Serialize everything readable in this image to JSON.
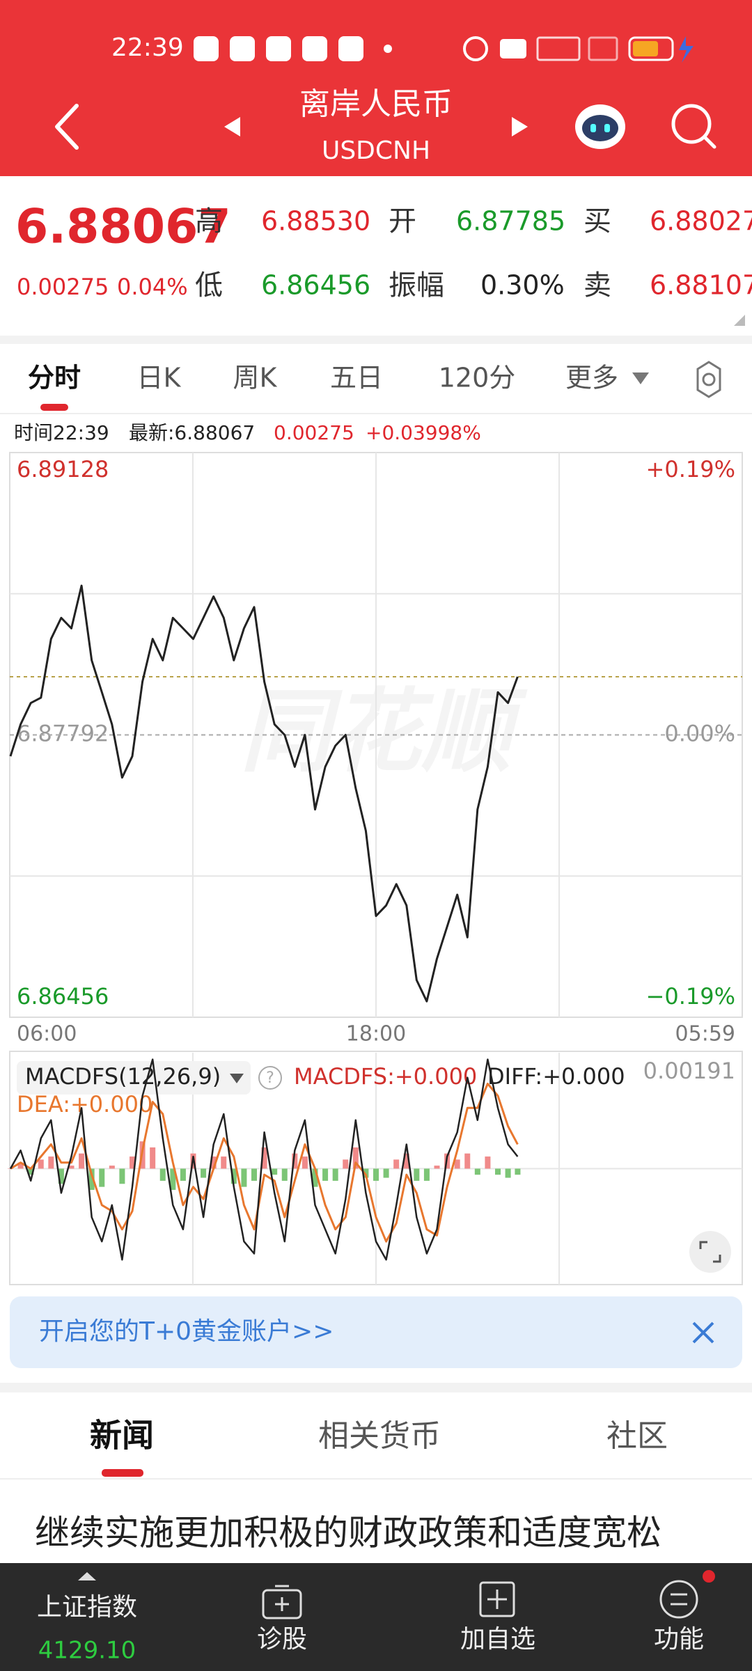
{
  "status_bar": {
    "time": "22:39"
  },
  "header": {
    "title": "离岸人民币",
    "code": "USDCNH"
  },
  "quote": {
    "price": "6.88067",
    "change": "0.00275",
    "change_pct": "0.04%",
    "fields": [
      {
        "label": "高",
        "value": "6.88530"
      },
      {
        "label": "开",
        "value": "6.87785"
      },
      {
        "label": "买",
        "value": "6.88027"
      },
      {
        "label": "低",
        "value": "6.86456"
      },
      {
        "label": "振幅",
        "value": "0.30%"
      },
      {
        "label": "卖",
        "value": "6.88107"
      }
    ]
  },
  "tabs": [
    "分时",
    "日K",
    "周K",
    "五日",
    "120分",
    "更多"
  ],
  "info": {
    "time": "时间22:39",
    "latest": "最新:6.88067",
    "change": "0.00275",
    "change_pct": "+0.03998%"
  },
  "watermark": "同花顺",
  "chart_data": [
    {
      "type": "line",
      "color": "#222222",
      "x": [
        "06:00",
        "06:20",
        "06:40",
        "07:00",
        "07:20",
        "07:40",
        "08:00",
        "08:20",
        "08:40",
        "09:00",
        "09:20",
        "09:40",
        "10:00",
        "10:20",
        "10:40",
        "11:00",
        "11:20",
        "11:40",
        "12:00",
        "12:20",
        "12:40",
        "13:00",
        "13:20",
        "13:40",
        "14:00",
        "14:20",
        "14:40",
        "15:00",
        "15:20",
        "15:40",
        "16:00",
        "16:20",
        "16:40",
        "17:00",
        "17:20",
        "17:40",
        "18:00",
        "18:20",
        "18:40",
        "19:00",
        "19:20",
        "19:40",
        "20:00",
        "20:20",
        "20:40",
        "21:00",
        "21:20",
        "21:40",
        "22:00",
        "22:20",
        "22:39"
      ],
      "values": [
        6.87691,
        6.87842,
        6.87943,
        6.87968,
        6.88246,
        6.88346,
        6.88296,
        6.88498,
        6.88145,
        6.87994,
        6.87842,
        6.8759,
        6.87691,
        6.88044,
        6.88246,
        6.88145,
        6.88346,
        6.88296,
        6.88246,
        6.88346,
        6.88447,
        6.88346,
        6.88145,
        6.88296,
        6.88397,
        6.88044,
        6.87842,
        6.87792,
        6.87641,
        6.87792,
        6.87439,
        6.87641,
        6.87741,
        6.87792,
        6.8754,
        6.87338,
        6.86935,
        6.86985,
        6.87086,
        6.86985,
        6.86632,
        6.86531,
        6.86733,
        6.86884,
        6.87036,
        6.86834,
        6.87439,
        6.87641,
        6.87994,
        6.87943,
        6.88067
      ],
      "ylim": [
        6.86456,
        6.89128
      ],
      "yticks": [
        6.86456,
        6.87792,
        6.89128
      ],
      "y2lim": [
        -0.19,
        0.19
      ],
      "y2ticks": [
        {
          "value": -0.19,
          "label": "−0.19%"
        },
        {
          "value": 0,
          "label": "0.00%"
        },
        {
          "value": 0.19,
          "label": "+0.19%"
        }
      ],
      "xlim": [
        "06:00",
        "05:59"
      ],
      "xticks": [
        "06:00",
        "18:00",
        "05:59"
      ],
      "grid": true
    },
    {
      "type": "macd",
      "title": "MACDFS(12,26,9)",
      "x": [
        "06:00",
        "06:20",
        "06:40",
        "07:00",
        "07:20",
        "07:40",
        "08:00",
        "08:20",
        "08:40",
        "09:00",
        "09:20",
        "09:40",
        "10:00",
        "10:20",
        "10:40",
        "11:00",
        "11:20",
        "11:40",
        "12:00",
        "12:20",
        "12:40",
        "13:00",
        "13:20",
        "13:40",
        "14:00",
        "14:20",
        "14:40",
        "15:00",
        "15:20",
        "15:40",
        "16:00",
        "16:20",
        "16:40",
        "17:00",
        "17:20",
        "17:40",
        "18:00",
        "18:20",
        "18:40",
        "19:00",
        "19:20",
        "19:40",
        "20:00",
        "20:20",
        "20:40",
        "21:00",
        "21:20",
        "21:40",
        "22:00",
        "22:20",
        "22:39"
      ],
      "xlim": [
        "06:00",
        "05:59"
      ],
      "ylim": [
        -0.00191,
        0.00191
      ],
      "yticks": [
        0.00191
      ],
      "series": [
        {
          "name": "MACDFS:+0.000",
          "color": "#f08a8a",
          "negative_color": "#7cc576",
          "values": [
            0,
            0.0001,
            -0.0001,
            0.00015,
            0.0002,
            -0.00025,
            5e-05,
            0.00025,
            -0.00035,
            -0.0003,
            5e-05,
            -0.00025,
            0.0002,
            0.00045,
            0.00035,
            -0.0002,
            -0.00035,
            -0.0002,
            0.00025,
            -0.00015,
            0.0002,
            0.0002,
            -0.00025,
            -0.0003,
            -0.0002,
            0.00035,
            -0.0001,
            -0.0002,
            0.00025,
            0.0002,
            -0.0003,
            -0.0002,
            -0.0002,
            0.00015,
            0.00035,
            -0.00015,
            -0.0002,
            -0.00015,
            0.00015,
            0.00025,
            -0.0002,
            -0.0002,
            5e-05,
            0.00025,
            0.00015,
            0.00025,
            -0.0001,
            0.0002,
            -0.0001,
            -0.00015,
            -0.0001
          ]
        },
        {
          "name": "DIFF:+0.000",
          "color": "#222222",
          "values": [
            0,
            0.0003,
            -0.0002,
            0.0005,
            0.0008,
            -0.0004,
            0.0002,
            0.001,
            -0.0008,
            -0.0012,
            -0.0006,
            -0.0015,
            -0.0003,
            0.0012,
            0.0018,
            0.0005,
            -0.0006,
            -0.001,
            0.0002,
            -0.0008,
            0.0004,
            0.0009,
            -0.0003,
            -0.0012,
            -0.0014,
            0.0006,
            -0.0004,
            -0.0012,
            0.0003,
            0.0008,
            -0.0006,
            -0.001,
            -0.0014,
            -0.0005,
            0.0008,
            -0.0004,
            -0.0012,
            -0.0015,
            -0.0006,
            0.0004,
            -0.0008,
            -0.0014,
            -0.001,
            0.0002,
            0.0006,
            0.0015,
            0.0008,
            0.0018,
            0.001,
            0.0004,
            0.0002
          ]
        },
        {
          "name": "DEA:+0.000",
          "color": "#e8772e",
          "values": [
            0,
            0.0001,
            0,
            0.0002,
            0.0004,
            0.0001,
            0.0001,
            0.0005,
            -0.0001,
            -0.0006,
            -0.0007,
            -0.001,
            -0.0007,
            0.0003,
            0.0011,
            0.0009,
            0.0001,
            -0.0006,
            -0.0003,
            -0.0005,
            0,
            0.0005,
            0.0002,
            -0.0006,
            -0.001,
            -0.0001,
            -0.0002,
            -0.0008,
            -0.0002,
            0.0004,
            0,
            -0.0006,
            -0.001,
            -0.0008,
            0.0001,
            -0.0001,
            -0.0008,
            -0.0012,
            -0.0009,
            -0.0001,
            -0.0004,
            -0.001,
            -0.0011,
            -0.0003,
            0.0003,
            0.001,
            0.001,
            0.0014,
            0.0012,
            0.0007,
            0.0004
          ]
        }
      ]
    }
  ],
  "banner": {
    "text": "开启您的T+0黄金账户>>"
  },
  "news_tabs": [
    "新闻",
    "相关货币",
    "社区"
  ],
  "headline": "继续实施更加积极的财政政策和适度宽松",
  "bottom_nav": {
    "index_name": "上证指数",
    "index_value": "4129.10",
    "items": [
      "诊股",
      "加自选",
      "功能"
    ]
  }
}
